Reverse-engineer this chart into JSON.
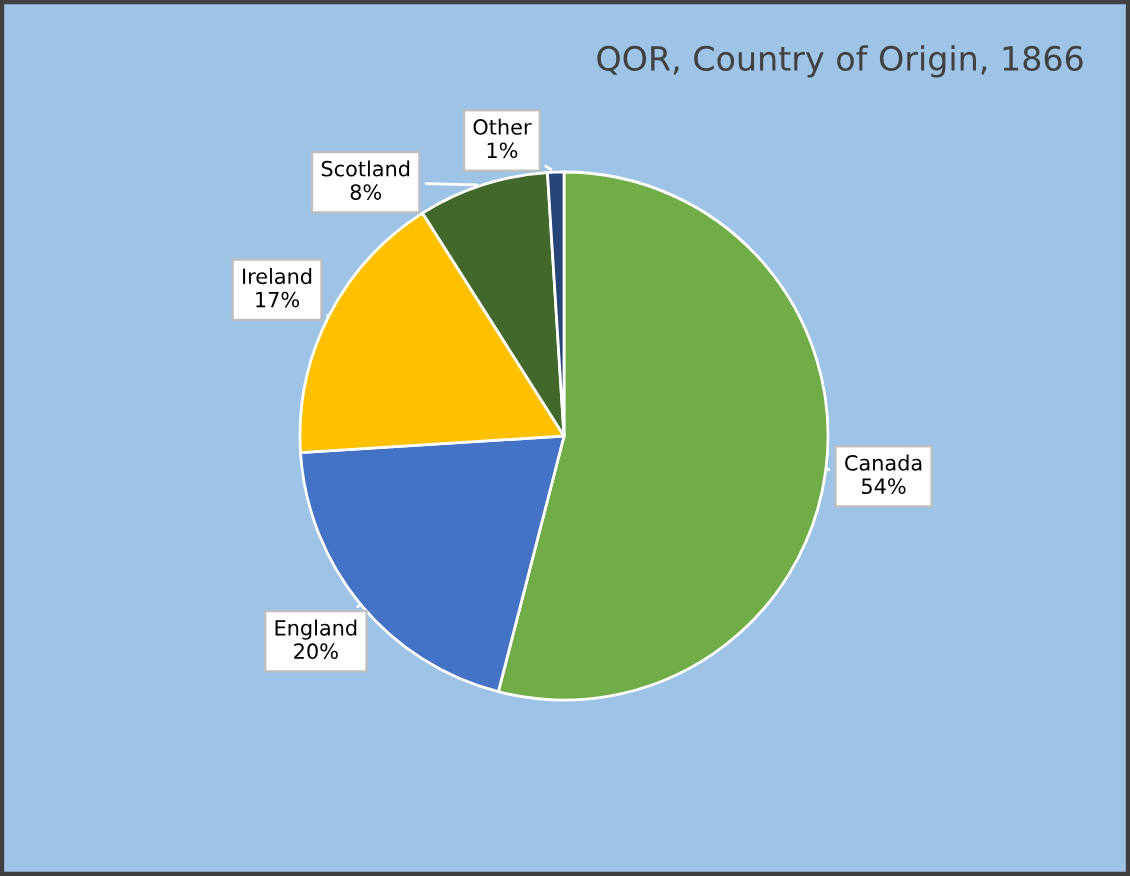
{
  "chart_data": {
    "type": "pie",
    "title": "QOR, Country of Origin, 1866",
    "categories": [
      "Canada",
      "England",
      "Ireland",
      "Scotland",
      "Other"
    ],
    "values": [
      54,
      20,
      17,
      8,
      1
    ],
    "value_labels": [
      "54%",
      "20%",
      "17%",
      "8%",
      "1%"
    ],
    "colors": [
      "#70ad47",
      "#4472c4",
      "#ffc000",
      "#43682b",
      "#264478"
    ],
    "legend": false
  }
}
